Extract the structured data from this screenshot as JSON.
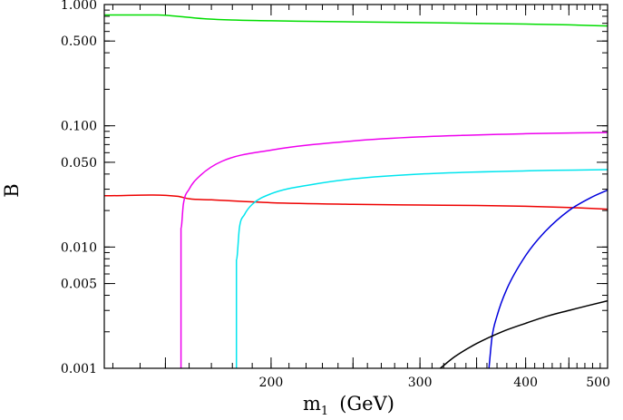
{
  "chart_data": {
    "type": "line",
    "title": "",
    "xlabel": "m",
    "xlabel_subscript": "1",
    "xlabel_unit": "(GeV)",
    "ylabel": "B",
    "x_scale": "log",
    "y_scale": "log",
    "xlim": [
      127,
      500
    ],
    "ylim": [
      0.001,
      1.0
    ],
    "grid": false,
    "legend": "none",
    "x_ticks": [
      {
        "value": 200,
        "label": "200"
      },
      {
        "value": 300,
        "label": "300"
      },
      {
        "value": 400,
        "label": "400"
      },
      {
        "value": 500,
        "label": "500"
      }
    ],
    "y_ticks": [
      {
        "value": 0.001,
        "label": "0.001"
      },
      {
        "value": 0.005,
        "label": "0.005"
      },
      {
        "value": 0.01,
        "label": "0.010"
      },
      {
        "value": 0.05,
        "label": "0.050"
      },
      {
        "value": 0.1,
        "label": "0.100"
      },
      {
        "value": 0.5,
        "label": "0.500"
      },
      {
        "value": 1.0,
        "label": "1.000"
      }
    ],
    "series": [
      {
        "color": "#00dd00",
        "x": [
          127,
          147,
          155,
          168,
          200,
          250,
          300,
          350,
          400,
          450,
          500
        ],
        "y": [
          0.82,
          0.82,
          0.8,
          0.76,
          0.735,
          0.72,
          0.71,
          0.7,
          0.69,
          0.68,
          0.665
        ]
      },
      {
        "color": "#ee0000",
        "x": [
          127,
          155,
          160,
          170,
          200,
          250,
          300,
          350,
          400,
          450,
          500
        ],
        "y": [
          0.0265,
          0.0262,
          0.025,
          0.0245,
          0.0232,
          0.0225,
          0.0222,
          0.022,
          0.0217,
          0.0212,
          0.0205
        ],
        "ends_at": "line"
      },
      {
        "color": "#ee00ee",
        "x": [
          156.5,
          156.5,
          157.5,
          160,
          165,
          175,
          200,
          250,
          300,
          400,
          500
        ],
        "y": [
          0.001,
          0.0142,
          0.0225,
          0.03,
          0.039,
          0.051,
          0.063,
          0.075,
          0.081,
          0.086,
          0.088
        ]
      },
      {
        "color": "#00e5ee",
        "x": [
          182,
          182,
          183.5,
          186,
          190,
          200,
          225,
          250,
          300,
          400,
          500
        ],
        "y": [
          0.001,
          0.0078,
          0.0145,
          0.0185,
          0.0225,
          0.0275,
          0.033,
          0.0365,
          0.04,
          0.0425,
          0.0435
        ]
      },
      {
        "color": "#0000dd",
        "x": [
          362,
          365,
          370,
          380,
          400,
          420,
          450,
          480,
          500
        ],
        "y": [
          0.001,
          0.0018,
          0.0027,
          0.0045,
          0.0085,
          0.013,
          0.02,
          0.026,
          0.0295
        ]
      },
      {
        "color": "#000000",
        "x": [
          317,
          330,
          350,
          375,
          400,
          425,
          450,
          475,
          500
        ],
        "y": [
          0.001,
          0.00125,
          0.0016,
          0.002,
          0.00235,
          0.0027,
          0.003,
          0.0033,
          0.0036
        ]
      }
    ]
  }
}
